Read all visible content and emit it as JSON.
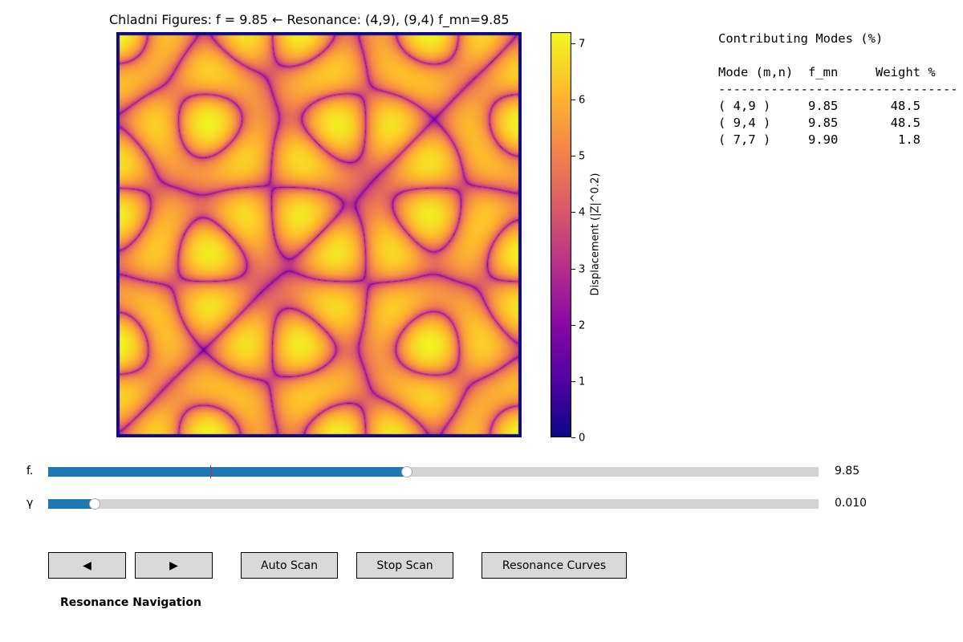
{
  "plot": {
    "title": "Chladni Figures: f = 9.85  ← Resonance: (4,9), (9,4) f_mn=9.85",
    "colorbar_label": "Displacement (|Z|^0.2)",
    "colorbar_ticks": [
      "0",
      "1",
      "2",
      "3",
      "4",
      "5",
      "6",
      "7"
    ],
    "colormap": "plasma",
    "plate_boundary_color": "#0d0887"
  },
  "modes_panel": {
    "heading": "Contributing Modes (%)",
    "columns": [
      "Mode (m,n)",
      "f_mn",
      "Weight %"
    ],
    "divider": "--------------------------------",
    "rows": [
      {
        "mode": "( 4,9 )",
        "f_mn": "9.85",
        "weight": "48.5"
      },
      {
        "mode": "( 9,4 )",
        "f_mn": "9.85",
        "weight": "48.5"
      },
      {
        "mode": "( 7,7 )",
        "f_mn": "9.90",
        "weight": "1.8"
      }
    ]
  },
  "sliders": {
    "f": {
      "label": "f.",
      "value_text": "9.85",
      "fraction": 0.466,
      "marker_fraction": 0.21
    },
    "gamma": {
      "label": "γ",
      "value_text": "0.010",
      "fraction": 0.06
    }
  },
  "buttons": {
    "prev": "◀",
    "next": "▶",
    "auto_scan": "Auto Scan",
    "stop_scan": "Stop Scan",
    "resonance_curves": "Resonance Curves"
  },
  "nav_label": "Resonance Navigation",
  "colors": {
    "slider_fill": "#1f77b4",
    "slider_track": "#d3d3d3",
    "slider_marker": "#d62728",
    "button_bg": "#d9d9d9"
  }
}
